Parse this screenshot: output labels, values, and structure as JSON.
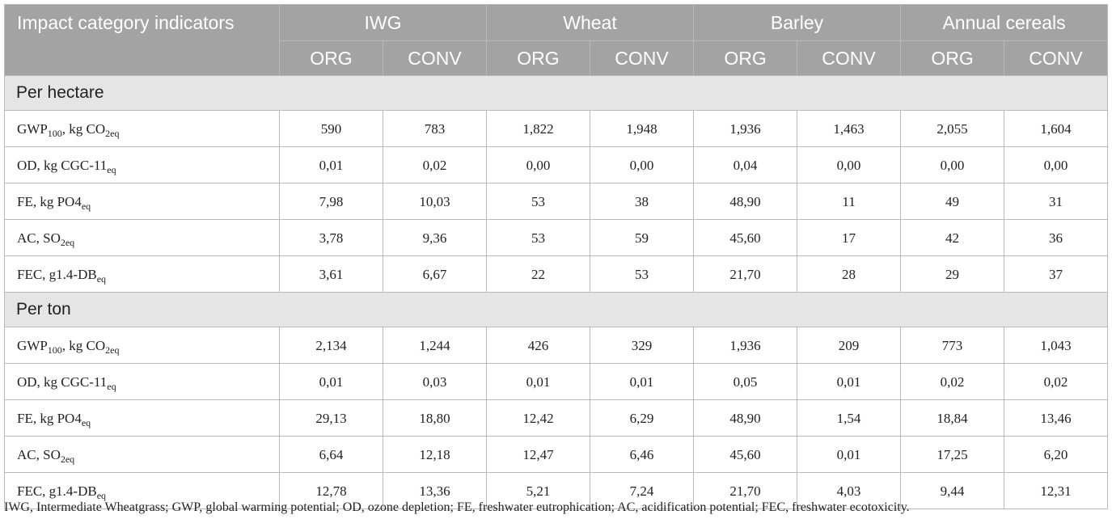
{
  "header": {
    "first_col": "Impact category indicators",
    "groups": [
      "IWG",
      "Wheat",
      "Barley",
      "Annual cereals"
    ],
    "subheaders": [
      "ORG",
      "CONV",
      "ORG",
      "CONV",
      "ORG",
      "CONV",
      "ORG",
      "CONV"
    ]
  },
  "sections": [
    {
      "title": "Per hectare",
      "rows": [
        {
          "label": {
            "pre": "GWP",
            "sub1": "100",
            "mid": ", kg CO",
            "sub2": "2eq"
          },
          "values": [
            "590",
            "783",
            "1,822",
            "1,948",
            "1,936",
            "1,463",
            "2,055",
            "1,604"
          ]
        },
        {
          "label": {
            "pre": "OD, kg CGC-11",
            "sub1": "eq",
            "mid": "",
            "sub2": ""
          },
          "values": [
            "0,01",
            "0,02",
            "0,00",
            "0,00",
            "0,04",
            "0,00",
            "0,00",
            "0,00"
          ]
        },
        {
          "label": {
            "pre": "FE, kg PO4",
            "sub1": "eq",
            "mid": "",
            "sub2": ""
          },
          "values": [
            "7,98",
            "10,03",
            "53",
            "38",
            "48,90",
            "11",
            "49",
            "31"
          ]
        },
        {
          "label": {
            "pre": "AC, SO",
            "sub1": "2eq",
            "mid": "",
            "sub2": ""
          },
          "values": [
            "3,78",
            "9,36",
            "53",
            "59",
            "45,60",
            "17",
            "42",
            "36"
          ]
        },
        {
          "label": {
            "pre": "FEC, g1.4-DB",
            "sub1": "eq",
            "mid": "",
            "sub2": ""
          },
          "values": [
            "3,61",
            "6,67",
            "22",
            "53",
            "21,70",
            "28",
            "29",
            "37"
          ]
        }
      ]
    },
    {
      "title": "Per ton",
      "rows": [
        {
          "label": {
            "pre": "GWP",
            "sub1": "100",
            "mid": ", kg CO",
            "sub2": "2eq"
          },
          "values": [
            "2,134",
            "1,244",
            "426",
            "329",
            "1,936",
            "209",
            "773",
            "1,043"
          ]
        },
        {
          "label": {
            "pre": "OD, kg CGC-11",
            "sub1": "eq",
            "mid": "",
            "sub2": ""
          },
          "values": [
            "0,01",
            "0,03",
            "0,01",
            "0,01",
            "0,05",
            "0,01",
            "0,02",
            "0,02"
          ]
        },
        {
          "label": {
            "pre": "FE, kg PO4",
            "sub1": "eq",
            "mid": "",
            "sub2": ""
          },
          "values": [
            "29,13",
            "18,80",
            "12,42",
            "6,29",
            "48,90",
            "1,54",
            "18,84",
            "13,46"
          ]
        },
        {
          "label": {
            "pre": "AC, SO",
            "sub1": "2eq",
            "mid": "",
            "sub2": ""
          },
          "values": [
            "6,64",
            "12,18",
            "12,47",
            "6,46",
            "45,60",
            "0,01",
            "17,25",
            "6,20"
          ]
        },
        {
          "label": {
            "pre": "FEC, g1.4-DB",
            "sub1": "eq",
            "mid": "",
            "sub2": ""
          },
          "values": [
            "12,78",
            "13,36",
            "5,21",
            "7,24",
            "21,70",
            "4,03",
            "9,44",
            "12,31"
          ]
        }
      ]
    }
  ],
  "footnote": "IWG, Intermediate Wheatgrass; GWP, global warming potential; OD, ozone depletion; FE, freshwater eutrophication; AC, acidification potential; FEC, freshwater ecotoxicity.",
  "colors": {
    "header_bg": "#a3a3a3",
    "header_text": "#ffffff",
    "section_bg": "#e5e5e5",
    "border": "#b9b9b9",
    "text": "#222222"
  }
}
